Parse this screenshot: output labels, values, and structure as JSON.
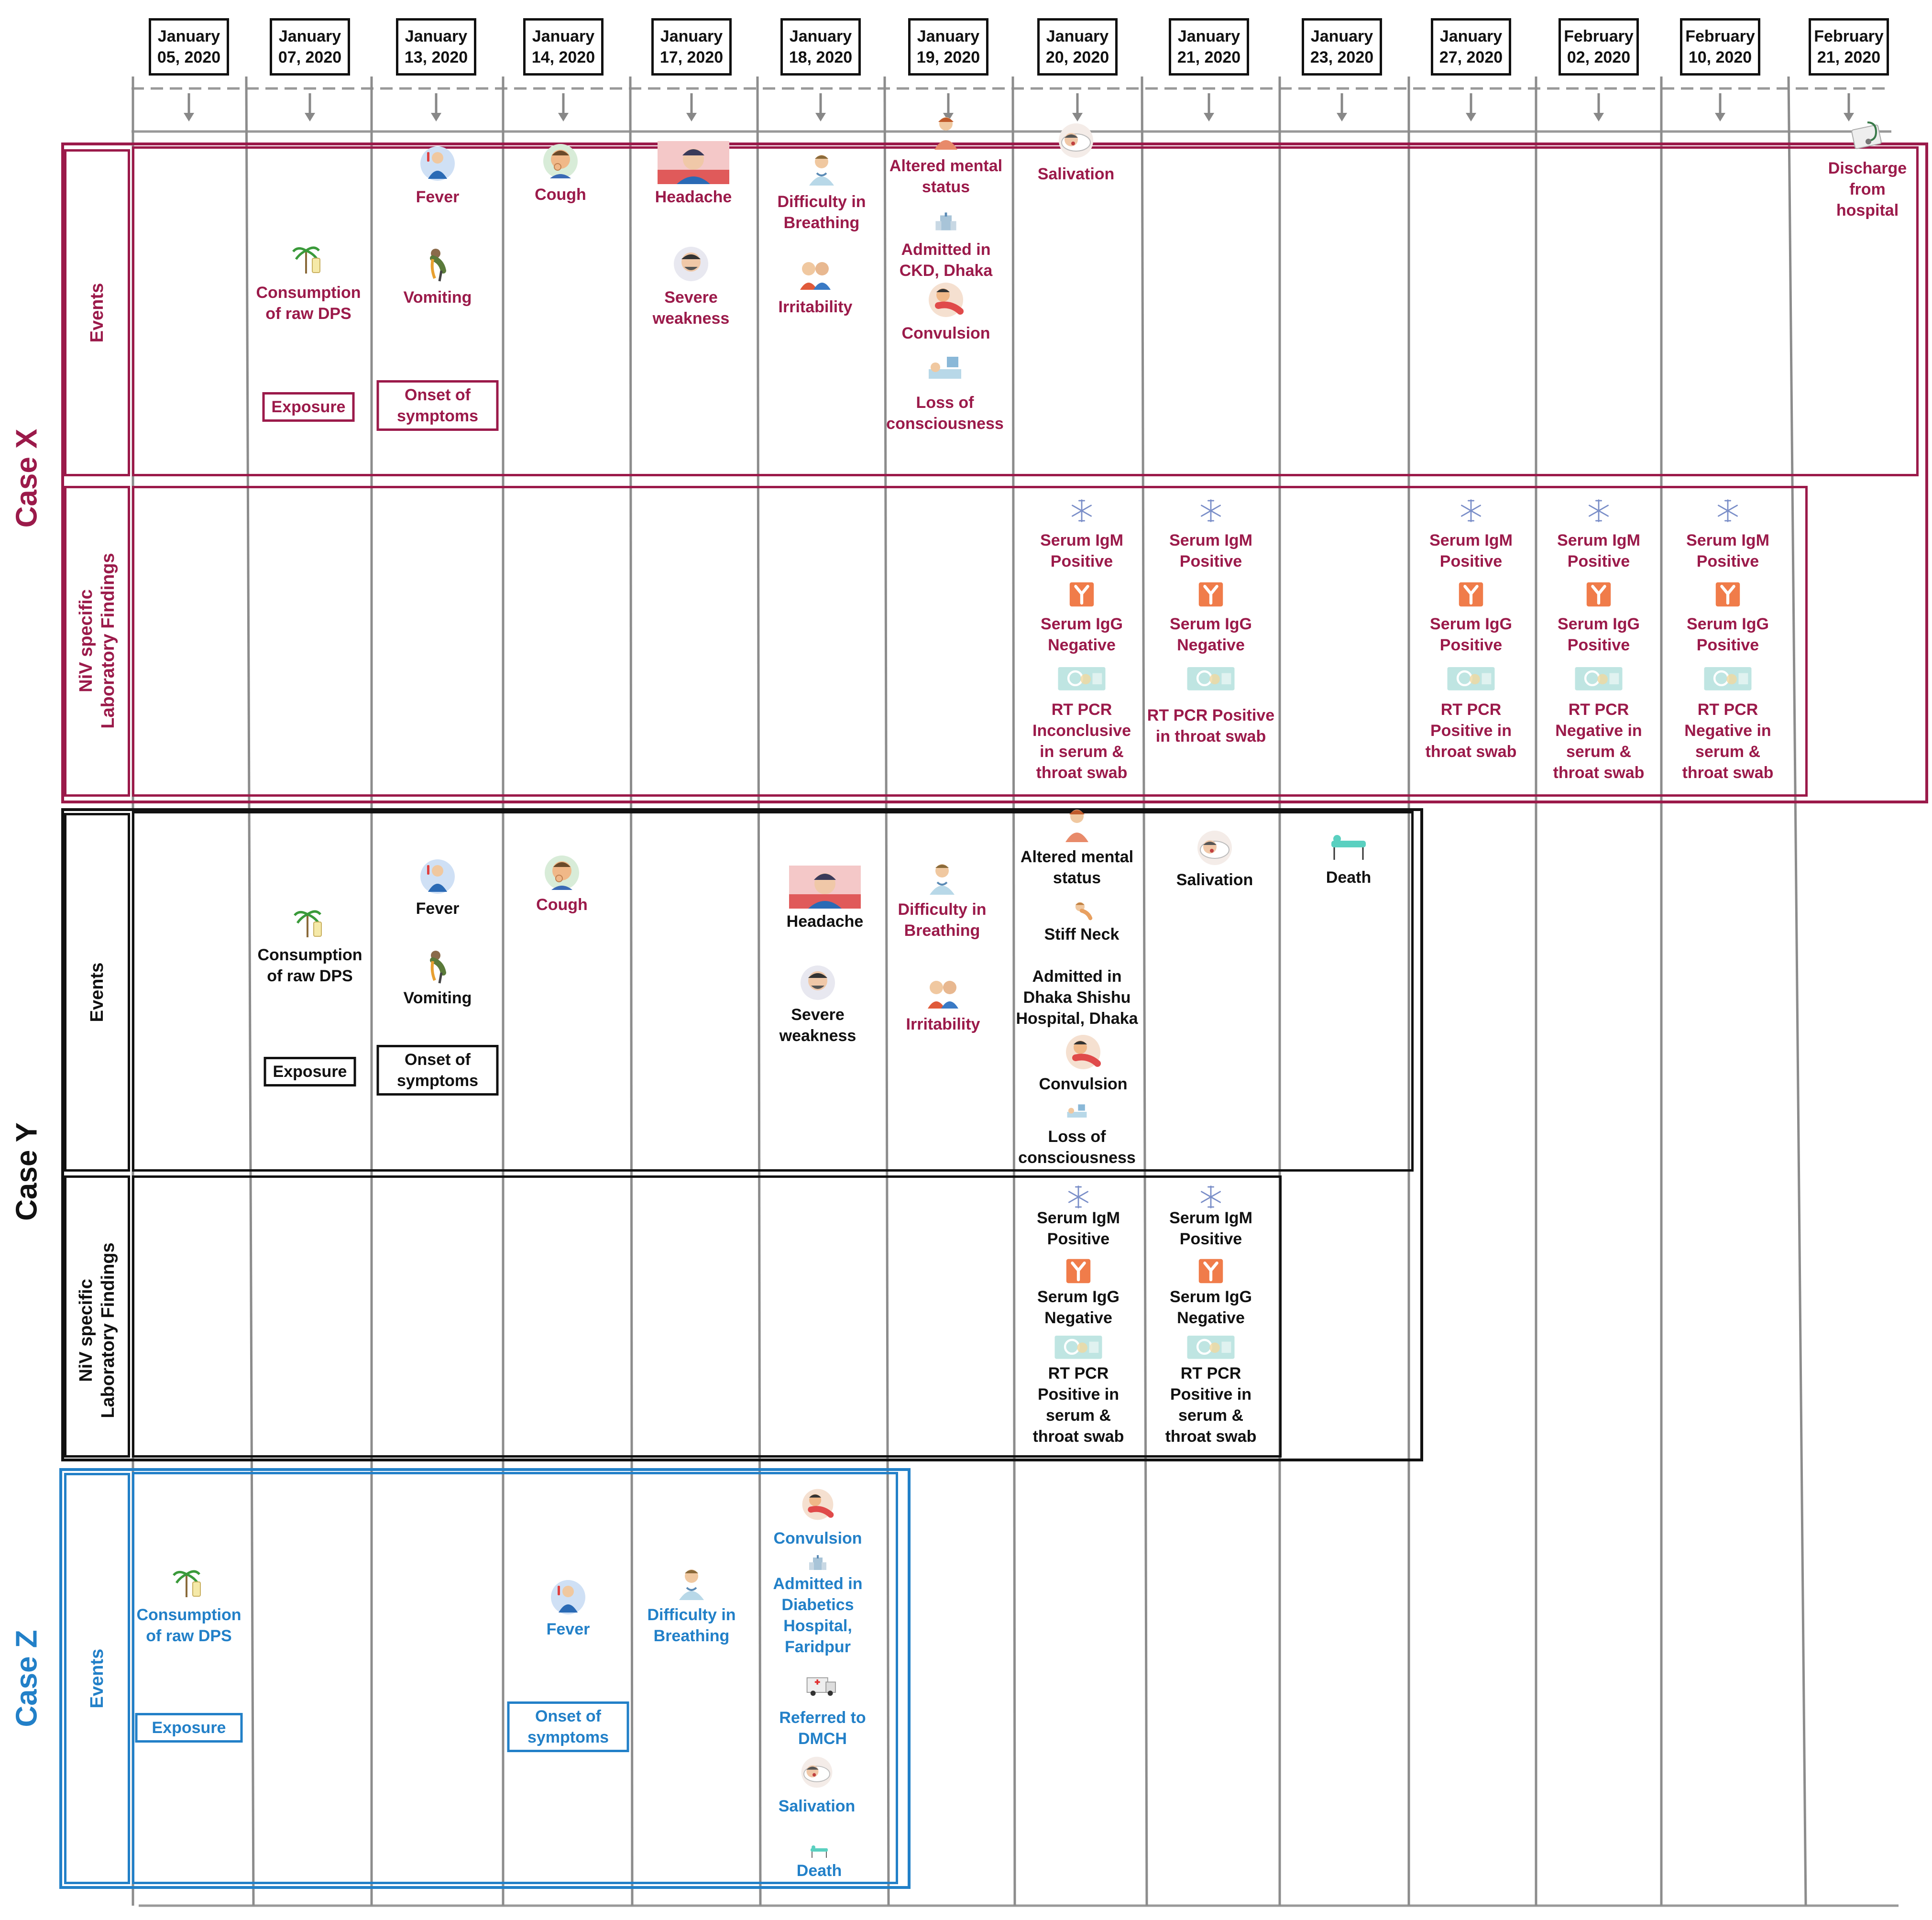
{
  "colors": {
    "case_x": "#9b1a4a",
    "case_y": "#111111",
    "case_z": "#2280c8",
    "gridline": "#8c8c8c",
    "igm_icon": "#7a8ec8",
    "igg_icon": "#f07c4a",
    "pcr_icon": "#a8dcd8"
  },
  "dates": [
    [
      "January",
      "05, 2020"
    ],
    [
      "January",
      "07, 2020"
    ],
    [
      "January",
      "13, 2020"
    ],
    [
      "January",
      "14, 2020"
    ],
    [
      "January",
      "17, 2020"
    ],
    [
      "January",
      "18, 2020"
    ],
    [
      "January",
      "19, 2020"
    ],
    [
      "January",
      "20, 2020"
    ],
    [
      "January",
      "21, 2020"
    ],
    [
      "January",
      "23, 2020"
    ],
    [
      "January",
      "27, 2020"
    ],
    [
      "February",
      "02, 2020"
    ],
    [
      "February",
      "10, 2020"
    ],
    [
      "February",
      "21, 2020"
    ]
  ],
  "cases": {
    "x": {
      "label": "Case X",
      "events_label": "Events",
      "lab_label": [
        "NiV specific",
        "Laboratory Findings"
      ],
      "events": [
        {
          "col": 1,
          "icon": "palm-tree-juice",
          "text": "Consumption\nof raw DPS",
          "tag": "Exposure"
        },
        {
          "col": 2,
          "icon": "fever",
          "text": "Fever"
        },
        {
          "col": 2,
          "icon": "vomiting",
          "text": "Vomiting",
          "tag": "Onset of\nsymptoms"
        },
        {
          "col": 3,
          "icon": "cough",
          "text": "Cough"
        },
        {
          "col": 4,
          "icon": "headache",
          "text": "Headache"
        },
        {
          "col": 4,
          "icon": "weakness",
          "text": "Severe\nweakness"
        },
        {
          "col": 5,
          "icon": "breathing",
          "text": "Difficulty in\nBreathing"
        },
        {
          "col": 5,
          "icon": "irritability",
          "text": "Irritability"
        },
        {
          "col": 6,
          "icon": "altered-mental",
          "text": "Altered mental\nstatus"
        },
        {
          "col": 6,
          "icon": "hospital",
          "text": "Admitted in\nCKD, Dhaka"
        },
        {
          "col": 6,
          "icon": "convulsion",
          "text": "Convulsion"
        },
        {
          "col": 6,
          "icon": "unconscious",
          "text": "Loss of\nconsciousness"
        },
        {
          "col": 7,
          "icon": "salivation",
          "text": "Salivation"
        },
        {
          "col": 13,
          "icon": "stethoscope",
          "text": "Discharge\nfrom\nhospital"
        }
      ],
      "lab": [
        {
          "col": 7,
          "igm": "Serum IgM\nPositive",
          "igg": "Serum IgG\nNegative",
          "pcr": "RT PCR\nInconclusive\nin serum &\nthroat swab"
        },
        {
          "col": 8,
          "igm": "Serum IgM\nPositive",
          "igg": "Serum IgG\nNegative",
          "pcr": "RT PCR Positive\nin throat swab"
        },
        {
          "col": 10,
          "igm": "Serum IgM\nPositive",
          "igg": "Serum IgG\nPositive",
          "pcr": "RT PCR\nPositive in\nthroat swab"
        },
        {
          "col": 11,
          "igm": "Serum IgM\nPositive",
          "igg": "Serum IgG\nPositive",
          "pcr": "RT PCR\nNegative in\nserum &\nthroat swab"
        },
        {
          "col": 12,
          "igm": "Serum IgM\nPositive",
          "igg": "Serum IgG\nPositive",
          "pcr": "RT PCR\nNegative in\nserum &\nthroat swab"
        }
      ]
    },
    "y": {
      "label": "Case Y",
      "events_label": "Events",
      "lab_label": [
        "NiV specific",
        "Laboratory Findings"
      ],
      "events": [
        {
          "col": 1,
          "icon": "palm-tree-juice",
          "text": "Consumption\nof raw DPS",
          "tag": "Exposure"
        },
        {
          "col": 2,
          "icon": "fever",
          "text": "Fever"
        },
        {
          "col": 2,
          "icon": "vomiting",
          "text": "Vomiting",
          "tag": "Onset of\nsymptoms"
        },
        {
          "col": 3,
          "icon": "cough",
          "text": "Cough",
          "accent": true
        },
        {
          "col": 5,
          "icon": "headache",
          "text": "Headache"
        },
        {
          "col": 5,
          "icon": "weakness",
          "text": "Severe\nweakness"
        },
        {
          "col": 6,
          "icon": "breathing",
          "text": "Difficulty in\nBreathing",
          "accent": true
        },
        {
          "col": 6,
          "icon": "irritability",
          "text": "Irritability",
          "accent": true
        },
        {
          "col": 7,
          "icon": "altered-mental",
          "text": "Altered mental\nstatus"
        },
        {
          "col": 7,
          "icon": "stiff-neck",
          "text": "Stiff Neck"
        },
        {
          "col": 7,
          "text": "Admitted in\nDhaka Shishu\nHospital, Dhaka"
        },
        {
          "col": 7,
          "icon": "convulsion",
          "text": "Convulsion"
        },
        {
          "col": 7,
          "icon": "unconscious",
          "text": "Loss of\nconsciousness"
        },
        {
          "col": 8,
          "icon": "salivation",
          "text": "Salivation"
        },
        {
          "col": 9,
          "icon": "stretcher",
          "text": "Death"
        }
      ],
      "lab": [
        {
          "col": 7,
          "igm": "Serum IgM\nPositive",
          "igg": "Serum IgG\nNegative",
          "pcr": "RT PCR\nPositive in\nserum &\nthroat swab"
        },
        {
          "col": 8,
          "igm": "Serum IgM\nPositive",
          "igg": "Serum IgG\nNegative",
          "pcr": "RT PCR\nPositive in\nserum &\nthroat swab"
        }
      ]
    },
    "z": {
      "label": "Case Z",
      "events_label": "Events",
      "events": [
        {
          "col": 0,
          "icon": "palm-tree-juice",
          "text": "Consumption\nof raw DPS",
          "tag": "Exposure"
        },
        {
          "col": 3,
          "icon": "fever",
          "text": "Fever",
          "tag": "Onset of\nsymptoms"
        },
        {
          "col": 4,
          "icon": "breathing",
          "text": "Difficulty in\nBreathing"
        },
        {
          "col": 5,
          "icon": "convulsion",
          "text": "Convulsion"
        },
        {
          "col": 5,
          "icon": "hospital",
          "text": "Admitted in\nDiabetics\nHospital,\nFaridpur"
        },
        {
          "col": 5,
          "icon": "ambulance",
          "text": "Referred to\nDMCH"
        },
        {
          "col": 5,
          "icon": "salivation",
          "text": "Salivation"
        },
        {
          "col": 5,
          "icon": "stretcher",
          "text": "Death"
        }
      ]
    }
  }
}
